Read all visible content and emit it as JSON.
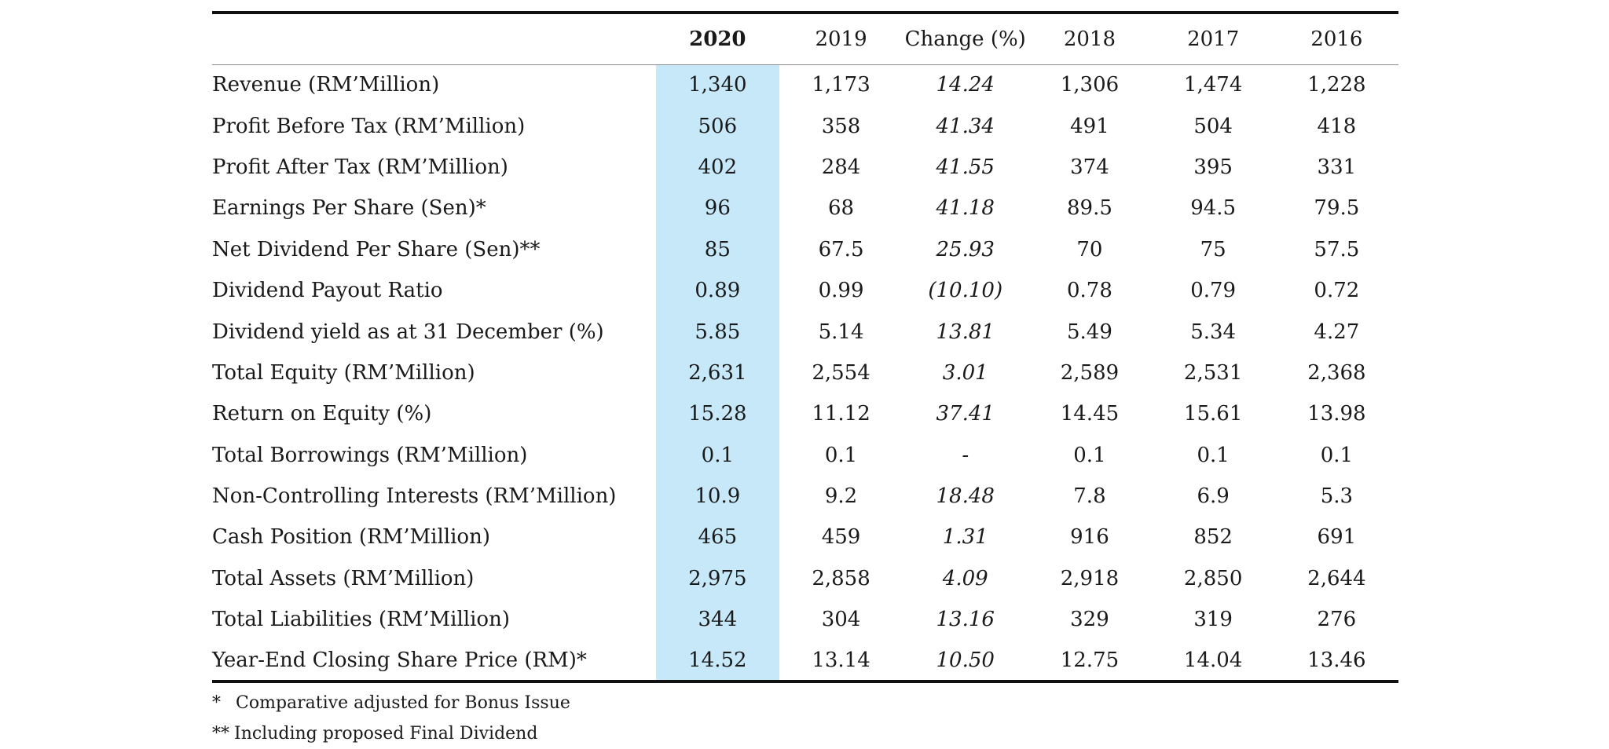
{
  "table": {
    "columns": [
      "",
      "2020",
      "2019",
      "Change (%)",
      "2018",
      "2017",
      "2016"
    ],
    "rows": [
      {
        "label": "Revenue  (RM’Million)",
        "values": [
          "1,340",
          "1,173",
          "14.24",
          "1,306",
          "1,474",
          "1,228"
        ]
      },
      {
        "label": "Profit Before Tax (RM’Million)",
        "values": [
          "506",
          "358",
          "41.34",
          "491",
          "504",
          "418"
        ]
      },
      {
        "label": "Profit After Tax (RM’Million)",
        "values": [
          "402",
          "284",
          "41.55",
          "374",
          "395",
          "331"
        ]
      },
      {
        "label": "Earnings Per Share (Sen)*",
        "values": [
          "96",
          "68",
          "41.18",
          "89.5",
          "94.5",
          "79.5"
        ]
      },
      {
        "label": "Net Dividend Per Share (Sen)**",
        "values": [
          "85",
          "67.5",
          "25.93",
          "70",
          "75",
          "57.5"
        ]
      },
      {
        "label": "Dividend Payout Ratio",
        "values": [
          "0.89",
          "0.99",
          "(10.10)",
          "0.78",
          "0.79",
          "0.72"
        ]
      },
      {
        "label": "Dividend yield as at 31 December (%)",
        "values": [
          "5.85",
          "5.14",
          "13.81",
          "5.49",
          "5.34",
          "4.27"
        ]
      },
      {
        "label": "Total Equity (RM’Million)",
        "values": [
          "2,631",
          "2,554",
          "3.01",
          "2,589",
          "2,531",
          "2,368"
        ]
      },
      {
        "label": "Return on Equity (%)",
        "values": [
          "15.28",
          "11.12",
          "37.41",
          "14.45",
          "15.61",
          "13.98"
        ]
      },
      {
        "label": "Total Borrowings (RM’Million)",
        "values": [
          "0.1",
          "0.1",
          "-",
          "0.1",
          "0.1",
          "0.1"
        ]
      },
      {
        "label": "Non-Controlling Interests (RM’Million)",
        "values": [
          "10.9",
          "9.2",
          "18.48",
          "7.8",
          "6.9",
          "5.3"
        ]
      },
      {
        "label": "Cash Position (RM’Million)",
        "values": [
          "465",
          "459",
          "1.31",
          "916",
          "852",
          "691"
        ]
      },
      {
        "label": "Total Assets (RM’Million)",
        "values": [
          "2,975",
          "2,858",
          "4.09",
          "2,918",
          "2,850",
          "2,644"
        ]
      },
      {
        "label": "Total Liabilities (RM’Million)",
        "values": [
          "344",
          "304",
          "13.16",
          "329",
          "319",
          "276"
        ]
      },
      {
        "label": "Year-End Closing Share Price (RM)*",
        "values": [
          "14.52",
          "13.14",
          "10.50",
          "12.75",
          "14.04",
          "13.46"
        ]
      }
    ]
  },
  "footnotes": [
    {
      "marker": "*",
      "text": "Comparative adjusted for Bonus Issue"
    },
    {
      "marker": "**",
      "text": "Including proposed Final Dividend"
    }
  ],
  "colors": {
    "highlight_column": "#c6e8f8",
    "rule": "#111111"
  }
}
